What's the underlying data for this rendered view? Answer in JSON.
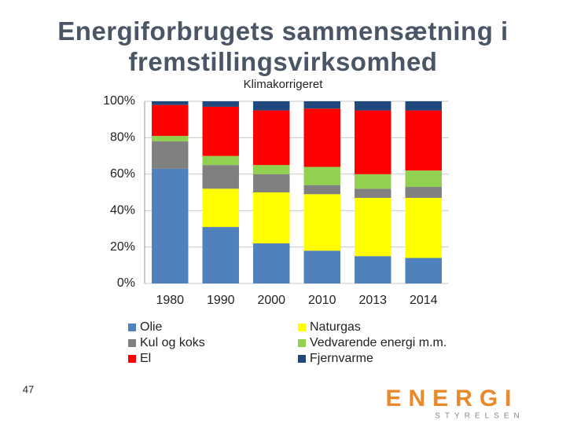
{
  "chart_data": {
    "type": "stacked-bar",
    "title": "Energiforbrugets sammensætning i fremstillingsvirksomhed",
    "subtitle": "Klimakorrigeret",
    "categories": [
      "1980",
      "1990",
      "2000",
      "2010",
      "2013",
      "2014"
    ],
    "series": [
      {
        "name": "Olie",
        "color": "#4f81bd",
        "values": [
          63,
          31,
          22,
          18,
          15,
          14
        ]
      },
      {
        "name": "Naturgas",
        "color": "#ffff00",
        "values": [
          0,
          21,
          28,
          31,
          32,
          33
        ]
      },
      {
        "name": "Kul og koks",
        "color": "#808080",
        "values": [
          15,
          13,
          10,
          5,
          5,
          6
        ]
      },
      {
        "name": "Vedvarende energi m.m.",
        "color": "#92d050",
        "values": [
          3,
          5,
          5,
          10,
          8,
          9
        ]
      },
      {
        "name": "El",
        "color": "#ff0000",
        "values": [
          17,
          27,
          30,
          32,
          35,
          33
        ]
      },
      {
        "name": "Fjernvarme",
        "color": "#1f497d",
        "values": [
          2,
          3,
          5,
          4,
          5,
          5
        ]
      }
    ],
    "ylim": [
      0,
      100
    ],
    "yticks": [
      {
        "value": 0,
        "label": "0%"
      },
      {
        "value": 20,
        "label": "20%"
      },
      {
        "value": 40,
        "label": "40%"
      },
      {
        "value": 60,
        "label": "60%"
      },
      {
        "value": 80,
        "label": "80%"
      },
      {
        "value": 100,
        "label": "100%"
      }
    ],
    "grid": true
  },
  "slide": {
    "page_number": "47",
    "logo": "ENERGI",
    "logo_subtitle": "STYRELSEN"
  }
}
